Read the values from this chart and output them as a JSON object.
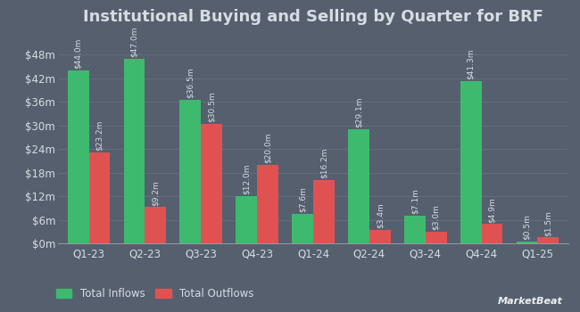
{
  "title": "Institutional Buying and Selling by Quarter for BRF",
  "quarters": [
    "Q1-23",
    "Q2-23",
    "Q3-23",
    "Q4-23",
    "Q1-24",
    "Q2-24",
    "Q3-24",
    "Q4-24",
    "Q1-25"
  ],
  "inflows": [
    44.0,
    47.0,
    36.5,
    12.0,
    7.6,
    29.1,
    7.1,
    41.3,
    0.5
  ],
  "outflows": [
    23.2,
    9.2,
    30.5,
    20.0,
    16.2,
    3.4,
    3.0,
    4.9,
    1.5
  ],
  "inflow_labels": [
    "$44.0m",
    "$47.0m",
    "$36.5m",
    "$12.0m",
    "$7.6m",
    "$29.1m",
    "$7.1m",
    "$41.3m",
    "$0.5m"
  ],
  "outflow_labels": [
    "$23.2m",
    "$9.2m",
    "$30.5m",
    "$20.0m",
    "$16.2m",
    "$3.4m",
    "$3.0m",
    "$4.9m",
    "$1.5m"
  ],
  "inflow_color": "#3dba6e",
  "outflow_color": "#e05252",
  "background_color": "#555f6e",
  "plot_bg_color": "#555f6e",
  "grid_color": "#666f7e",
  "text_color": "#d8dce2",
  "label_color": "#d8dce2",
  "title_fontsize": 13,
  "tick_fontsize": 8.5,
  "legend_fontsize": 8.5,
  "bar_label_fontsize": 6.5,
  "ylim": [
    0,
    54
  ],
  "yticks": [
    0,
    6,
    12,
    18,
    24,
    30,
    36,
    42,
    48
  ],
  "ytick_labels": [
    "$0m",
    "$6m",
    "$12m",
    "$18m",
    "$24m",
    "$30m",
    "$36m",
    "$42m",
    "$48m"
  ],
  "legend_labels": [
    "Total Inflows",
    "Total Outflows"
  ],
  "watermark": "MarketBeat"
}
